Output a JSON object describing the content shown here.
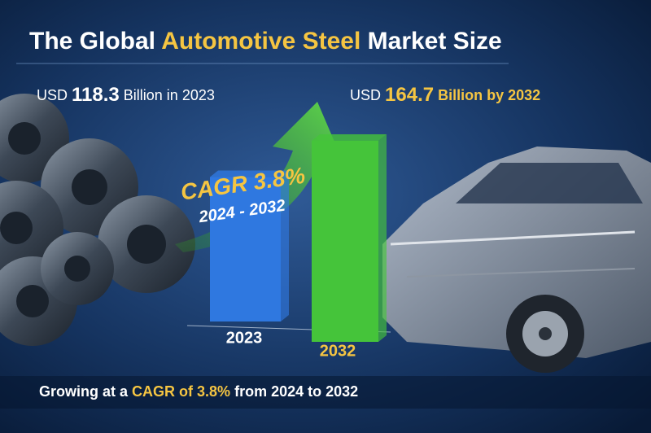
{
  "chart_data": {
    "type": "bar",
    "title": [
      {
        "text": "The Global",
        "color": "#ffffff"
      },
      {
        "text": "Automotive Steel",
        "color": "#f5c542"
      },
      {
        "text": "Market Size",
        "color": "#ffffff"
      }
    ],
    "categories": [
      "2023",
      "2032"
    ],
    "values": [
      118.3,
      164.7
    ],
    "colors": [
      "#2f78e0",
      "#45c43a"
    ],
    "value_prefix": "USD",
    "value_suffixes": [
      "Billion in 2023",
      "Billion by 2032"
    ],
    "value_colors": [
      "#ffffff",
      "#f5c542"
    ],
    "cagr": {
      "label": "CAGR",
      "value": 3.8,
      "value_label": "3.8%",
      "period": "2024 - 2032"
    },
    "footer": [
      {
        "text": "Growing at a",
        "color": "#ffffff"
      },
      {
        "text": "CAGR of 3.8%",
        "color": "#f5c542"
      },
      {
        "text": "from 2024 to 2032",
        "color": "#ffffff"
      }
    ]
  }
}
